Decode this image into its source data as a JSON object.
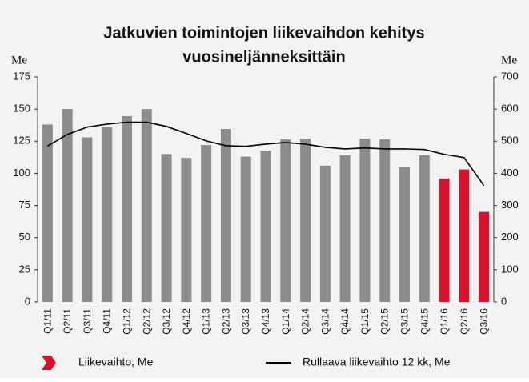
{
  "chart_data": {
    "type": "bar_line",
    "title": [
      "Jatkuvien toimintojen liikevaihdon kehitys",
      "vuosineljänneksittäin"
    ],
    "y_label": "Me",
    "y2_label": "Me",
    "categories": [
      "Q1/11",
      "Q2/11",
      "Q3/11",
      "Q4/11",
      "Q1/12",
      "Q2/12",
      "Q3/12",
      "Q4/12",
      "Q1/13",
      "Q2/13",
      "Q3/13",
      "Q4/13",
      "Q1/14",
      "Q2/14",
      "Q3/14",
      "Q4/14",
      "Q1/15",
      "Q2/15",
      "Q3/15",
      "Q4/15",
      "Q1/16",
      "Q2/16",
      "Q3/16"
    ],
    "series": [
      {
        "name": "Liikevaihto, Me",
        "type": "bar",
        "color": "#d7132c",
        "colors": [
          "#8c8c8c",
          "#8c8c8c",
          "#8c8c8c",
          "#8c8c8c",
          "#8c8c8c",
          "#8c8c8c",
          "#8c8c8c",
          "#8c8c8c",
          "#8c8c8c",
          "#8c8c8c",
          "#8c8c8c",
          "#8c8c8c",
          "#8c8c8c",
          "#8c8c8c",
          "#8c8c8c",
          "#8c8c8c",
          "#8c8c8c",
          "#8c8c8c",
          "#8c8c8c",
          "#8c8c8c",
          "#d7132c",
          "#d7132c",
          "#d7132c"
        ],
        "values": [
          138,
          150,
          128,
          136,
          144.5,
          150,
          115,
          112,
          122,
          134.5,
          113,
          117.7,
          126.4,
          127,
          106,
          114,
          127,
          126.4,
          105,
          114,
          96,
          103,
          70
        ]
      },
      {
        "name": "Rullaava liikevaihto 12 kk, Me",
        "type": "line",
        "axis": "y2",
        "color": "#000000",
        "values": [
          485,
          521,
          544,
          553,
          559,
          559,
          546,
          524,
          501,
          486,
          484,
          491,
          496,
          491,
          481,
          476,
          479,
          476,
          476,
          474,
          459,
          449,
          362
        ]
      }
    ],
    "ylim": [
      0,
      175
    ],
    "yticks": [
      0,
      25,
      50,
      75,
      100,
      125,
      150,
      175
    ],
    "y2lim": [
      0,
      700
    ],
    "y2ticks": [
      0,
      100,
      200,
      300,
      400,
      500,
      600,
      700
    ]
  }
}
